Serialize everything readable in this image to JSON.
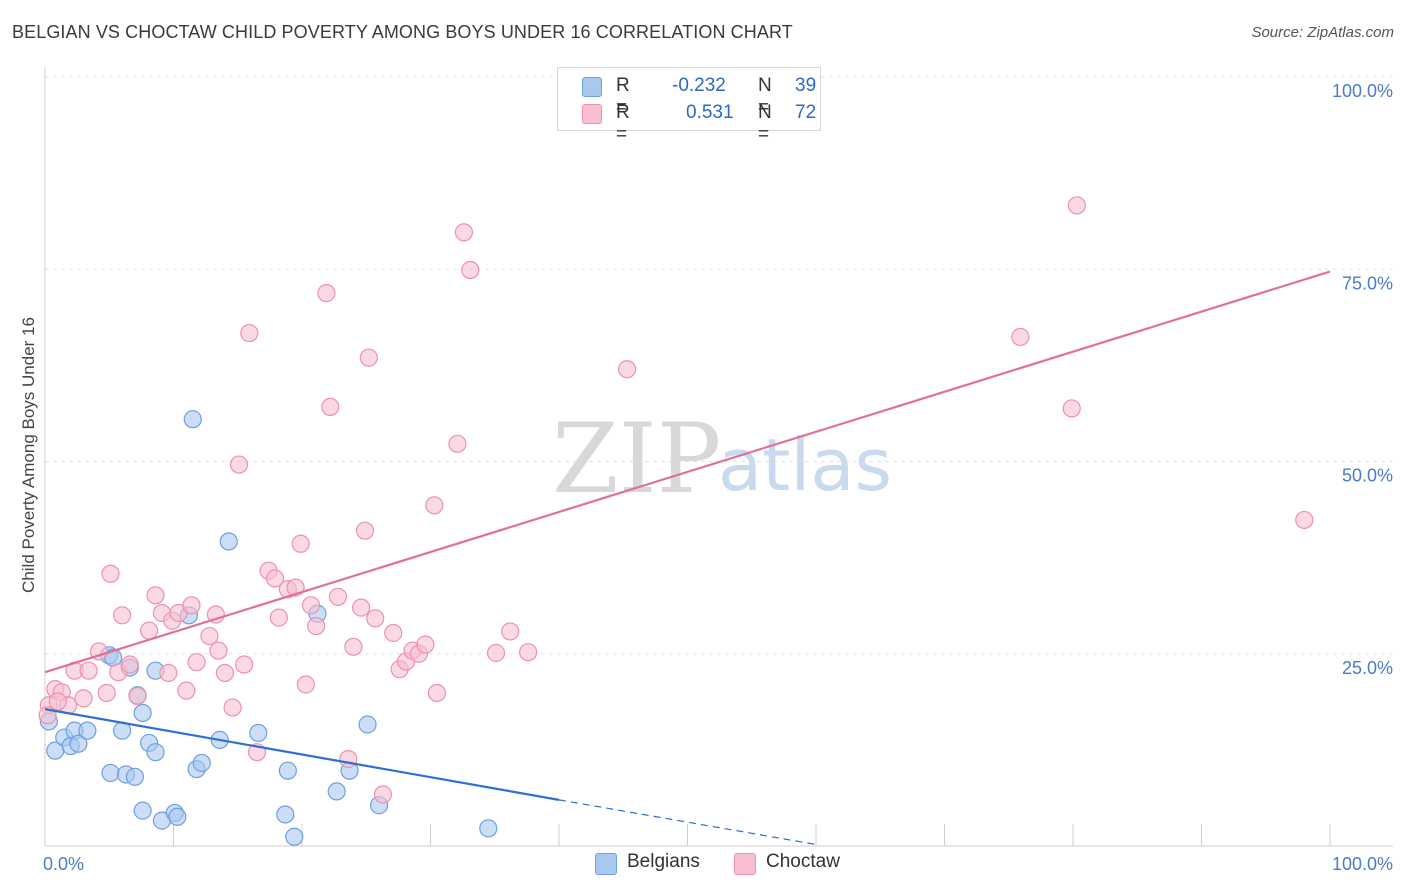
{
  "title": "BELGIAN VS CHOCTAW CHILD POVERTY AMONG BOYS UNDER 16 CORRELATION CHART",
  "source": "Source: ZipAtlas.com",
  "watermark": {
    "zip": "ZIP",
    "atlas": "atlas"
  },
  "legend": {
    "rows": [
      {
        "r_label": "R =",
        "r_value": "-0.232",
        "n_label": "N =",
        "n_value": "39",
        "color": "#a9c8f0",
        "border": "#6f9fe0"
      },
      {
        "r_label": "R =",
        "r_value": "0.531",
        "n_label": "N =",
        "n_value": "72",
        "color": "#f7bfd1",
        "border": "#ee90b0"
      }
    ]
  },
  "bottom_legend": [
    {
      "label": "Belgians",
      "color": "#a9c8f0",
      "border": "#6f9fe0"
    },
    {
      "label": "Choctaw",
      "color": "#f7bfd1",
      "border": "#ee90b0"
    }
  ],
  "chart_data": {
    "type": "scatter",
    "title": "BELGIAN VS CHOCTAW CHILD POVERTY AMONG BOYS UNDER 16 CORRELATION CHART",
    "xlabel": "",
    "ylabel": "Child Poverty Among Boys Under 16",
    "xlim": [
      0,
      100
    ],
    "ylim": [
      0,
      100
    ],
    "x_tick_labels": [
      "0.0%",
      "100.0%"
    ],
    "y_tick_labels": [
      {
        "value": 100,
        "label": "100.0%"
      },
      {
        "value": 75,
        "label": "75.0%"
      },
      {
        "value": 50,
        "label": "50.0%"
      },
      {
        "value": 25,
        "label": "25.0%"
      }
    ],
    "grid": true,
    "legend_position": "top-center",
    "series": [
      {
        "name": "Belgians",
        "color": "#6f9fe0",
        "fill": "#a9c8f0",
        "trend": {
          "x": [
            0,
            40
          ],
          "y": [
            17.8,
            6.0
          ],
          "dashed_to": [
            60,
            0.2
          ]
        },
        "points": [
          [
            0.3,
            16.2
          ],
          [
            0.8,
            12.4
          ],
          [
            1.5,
            14.1
          ],
          [
            2.0,
            13.0
          ],
          [
            2.3,
            15.0
          ],
          [
            2.6,
            13.3
          ],
          [
            3.3,
            15.0
          ],
          [
            5.0,
            24.8
          ],
          [
            5.3,
            24.5
          ],
          [
            6.0,
            15.0
          ],
          [
            6.6,
            23.2
          ],
          [
            7.2,
            19.6
          ],
          [
            7.6,
            17.3
          ],
          [
            8.6,
            22.8
          ],
          [
            5.1,
            9.5
          ],
          [
            6.3,
            9.3
          ],
          [
            7.0,
            9.0
          ],
          [
            7.6,
            4.6
          ],
          [
            8.1,
            13.4
          ],
          [
            8.6,
            12.2
          ],
          [
            9.1,
            3.3
          ],
          [
            10.1,
            4.3
          ],
          [
            10.3,
            3.8
          ],
          [
            11.2,
            30.0
          ],
          [
            11.5,
            55.5
          ],
          [
            11.8,
            10.0
          ],
          [
            12.2,
            10.8
          ],
          [
            14.3,
            39.6
          ],
          [
            13.6,
            13.8
          ],
          [
            16.6,
            14.7
          ],
          [
            18.7,
            4.1
          ],
          [
            18.9,
            9.8
          ],
          [
            19.4,
            1.2
          ],
          [
            21.2,
            30.2
          ],
          [
            22.7,
            7.1
          ],
          [
            23.7,
            9.8
          ],
          [
            25.1,
            15.8
          ],
          [
            26.0,
            5.3
          ],
          [
            34.5,
            2.3
          ]
        ]
      },
      {
        "name": "Choctaw",
        "color": "#ee90b0",
        "fill": "#f7bfd1",
        "trend": {
          "x": [
            0,
            100
          ],
          "y": [
            22.6,
            74.7
          ]
        },
        "points": [
          [
            0.3,
            18.3
          ],
          [
            0.8,
            20.4
          ],
          [
            1.3,
            20.0
          ],
          [
            1.8,
            18.3
          ],
          [
            2.3,
            22.8
          ],
          [
            3.0,
            19.2
          ],
          [
            3.4,
            22.8
          ],
          [
            4.2,
            25.3
          ],
          [
            4.8,
            19.9
          ],
          [
            5.1,
            35.4
          ],
          [
            5.7,
            22.6
          ],
          [
            6.0,
            30.0
          ],
          [
            6.6,
            23.6
          ],
          [
            7.2,
            19.5
          ],
          [
            8.1,
            28.0
          ],
          [
            8.6,
            32.6
          ],
          [
            9.1,
            30.3
          ],
          [
            9.6,
            22.5
          ],
          [
            9.9,
            29.3
          ],
          [
            10.4,
            30.3
          ],
          [
            11.0,
            20.2
          ],
          [
            11.4,
            31.3
          ],
          [
            11.8,
            23.9
          ],
          [
            12.8,
            27.3
          ],
          [
            13.3,
            30.1
          ],
          [
            13.5,
            25.4
          ],
          [
            14.0,
            22.5
          ],
          [
            14.6,
            18.0
          ],
          [
            15.1,
            49.6
          ],
          [
            15.5,
            23.6
          ],
          [
            15.9,
            66.7
          ],
          [
            16.5,
            12.2
          ],
          [
            17.4,
            35.8
          ],
          [
            17.9,
            34.8
          ],
          [
            18.2,
            29.7
          ],
          [
            18.9,
            33.4
          ],
          [
            19.5,
            33.6
          ],
          [
            19.9,
            39.3
          ],
          [
            20.3,
            21.0
          ],
          [
            20.7,
            31.3
          ],
          [
            21.1,
            28.6
          ],
          [
            21.9,
            71.9
          ],
          [
            22.2,
            57.1
          ],
          [
            22.8,
            32.4
          ],
          [
            23.6,
            11.3
          ],
          [
            24.0,
            25.9
          ],
          [
            24.6,
            31.0
          ],
          [
            24.9,
            41.0
          ],
          [
            25.2,
            63.5
          ],
          [
            25.7,
            29.6
          ],
          [
            26.3,
            6.7
          ],
          [
            27.1,
            27.7
          ],
          [
            27.6,
            23.0
          ],
          [
            28.1,
            24.0
          ],
          [
            28.6,
            25.4
          ],
          [
            29.1,
            25.0
          ],
          [
            29.6,
            26.2
          ],
          [
            30.3,
            44.3
          ],
          [
            30.5,
            19.9
          ],
          [
            32.1,
            52.3
          ],
          [
            32.6,
            79.8
          ],
          [
            33.1,
            74.9
          ],
          [
            35.1,
            25.1
          ],
          [
            36.2,
            27.9
          ],
          [
            37.6,
            25.2
          ],
          [
            45.3,
            62.0
          ],
          [
            75.9,
            66.2
          ],
          [
            79.9,
            56.9
          ],
          [
            80.3,
            83.3
          ],
          [
            98.0,
            42.4
          ],
          [
            0.2,
            17.0
          ],
          [
            1.0,
            18.8
          ]
        ]
      }
    ]
  }
}
